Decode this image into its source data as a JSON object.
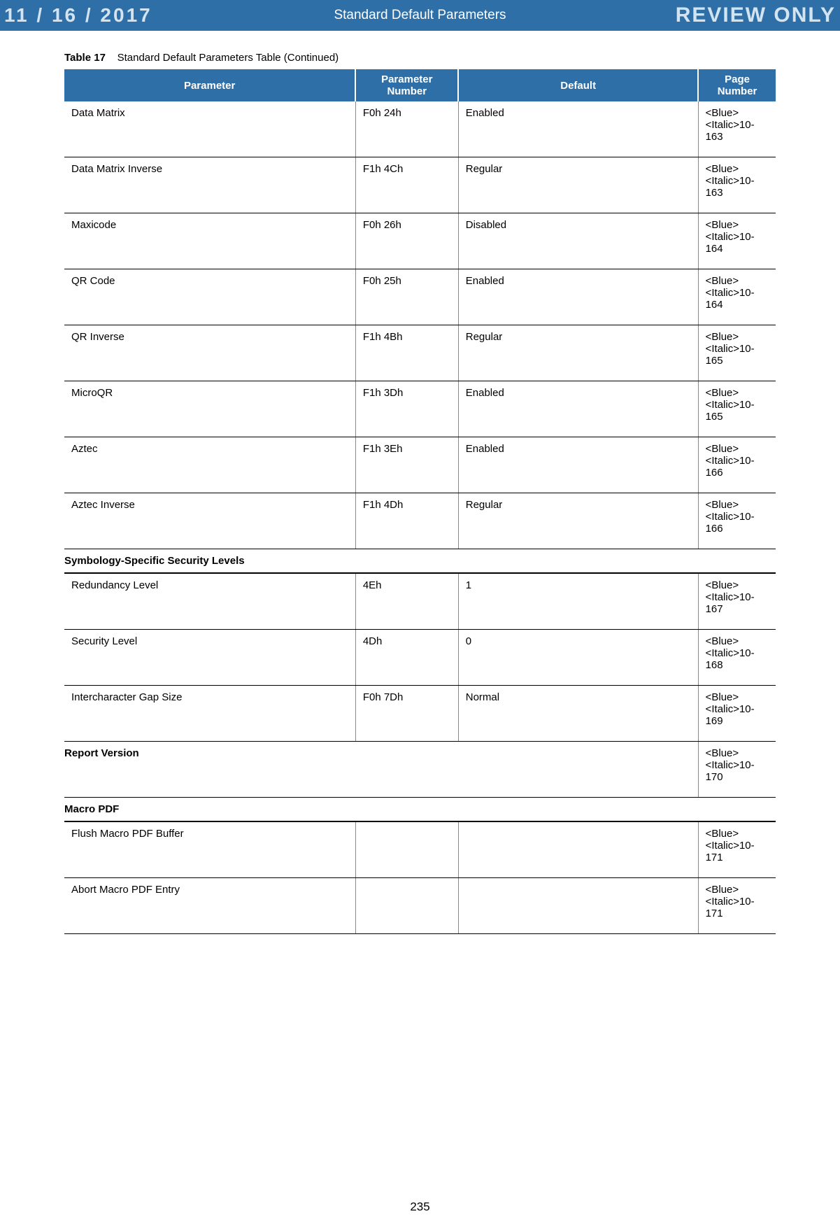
{
  "header": {
    "date": "11 / 16 / 2017",
    "title": "Standard Default Parameters",
    "review": "REVIEW ONLY"
  },
  "caption": {
    "label": "Table 17",
    "text": "Standard Default Parameters Table (Continued)"
  },
  "columns": {
    "c1": "Parameter",
    "c2": "Parameter Number",
    "c3": "Default",
    "c4": "Page Number"
  },
  "rows": [
    {
      "type": "data",
      "p": "Data Matrix",
      "n": "F0h 24h",
      "d": "Enabled",
      "pg": "<Blue><Italic>10-163"
    },
    {
      "type": "data",
      "p": "Data Matrix Inverse",
      "n": "F1h 4Ch",
      "d": "Regular",
      "pg": "<Blue><Italic>10-163"
    },
    {
      "type": "data",
      "p": "Maxicode",
      "n": "F0h 26h",
      "d": "Disabled",
      "pg": "<Blue><Italic>10-164"
    },
    {
      "type": "data",
      "p": "QR Code",
      "n": "F0h 25h",
      "d": "Enabled",
      "pg": "<Blue><Italic>10-164"
    },
    {
      "type": "data",
      "p": "QR Inverse",
      "n": "F1h 4Bh",
      "d": "Regular",
      "pg": "<Blue><Italic>10-165"
    },
    {
      "type": "data",
      "p": "MicroQR",
      "n": "F1h 3Dh",
      "d": "Enabled",
      "pg": "<Blue><Italic>10-165"
    },
    {
      "type": "data",
      "p": "Aztec",
      "n": "F1h 3Eh",
      "d": "Enabled",
      "pg": "<Blue><Italic>10-166"
    },
    {
      "type": "data",
      "p": "Aztec Inverse",
      "n": "F1h 4Dh",
      "d": "Regular",
      "pg": "<Blue><Italic>10-166"
    },
    {
      "type": "section",
      "title": "Symbology-Specific Security Levels"
    },
    {
      "type": "data",
      "p": "Redundancy Level",
      "n": "4Eh",
      "d": "1",
      "pg": "<Blue><Italic>10-167"
    },
    {
      "type": "data",
      "p": "Security Level",
      "n": "4Dh",
      "d": "0",
      "pg": "<Blue><Italic>10-168"
    },
    {
      "type": "data",
      "p": "Intercharacter Gap Size",
      "n": "F0h 7Dh",
      "d": "Normal",
      "pg": "<Blue><Italic>10-169"
    },
    {
      "type": "report",
      "p": "Report Version",
      "pg": "<Blue><Italic>10-170"
    },
    {
      "type": "section",
      "title": "Macro PDF"
    },
    {
      "type": "data",
      "p": "Flush Macro PDF Buffer",
      "n": "",
      "d": "",
      "pg": "<Blue><Italic>10-171"
    },
    {
      "type": "data",
      "p": "Abort Macro PDF Entry",
      "n": "",
      "d": "",
      "pg": "<Blue><Italic>10-171"
    }
  ],
  "pageNumber": "235"
}
